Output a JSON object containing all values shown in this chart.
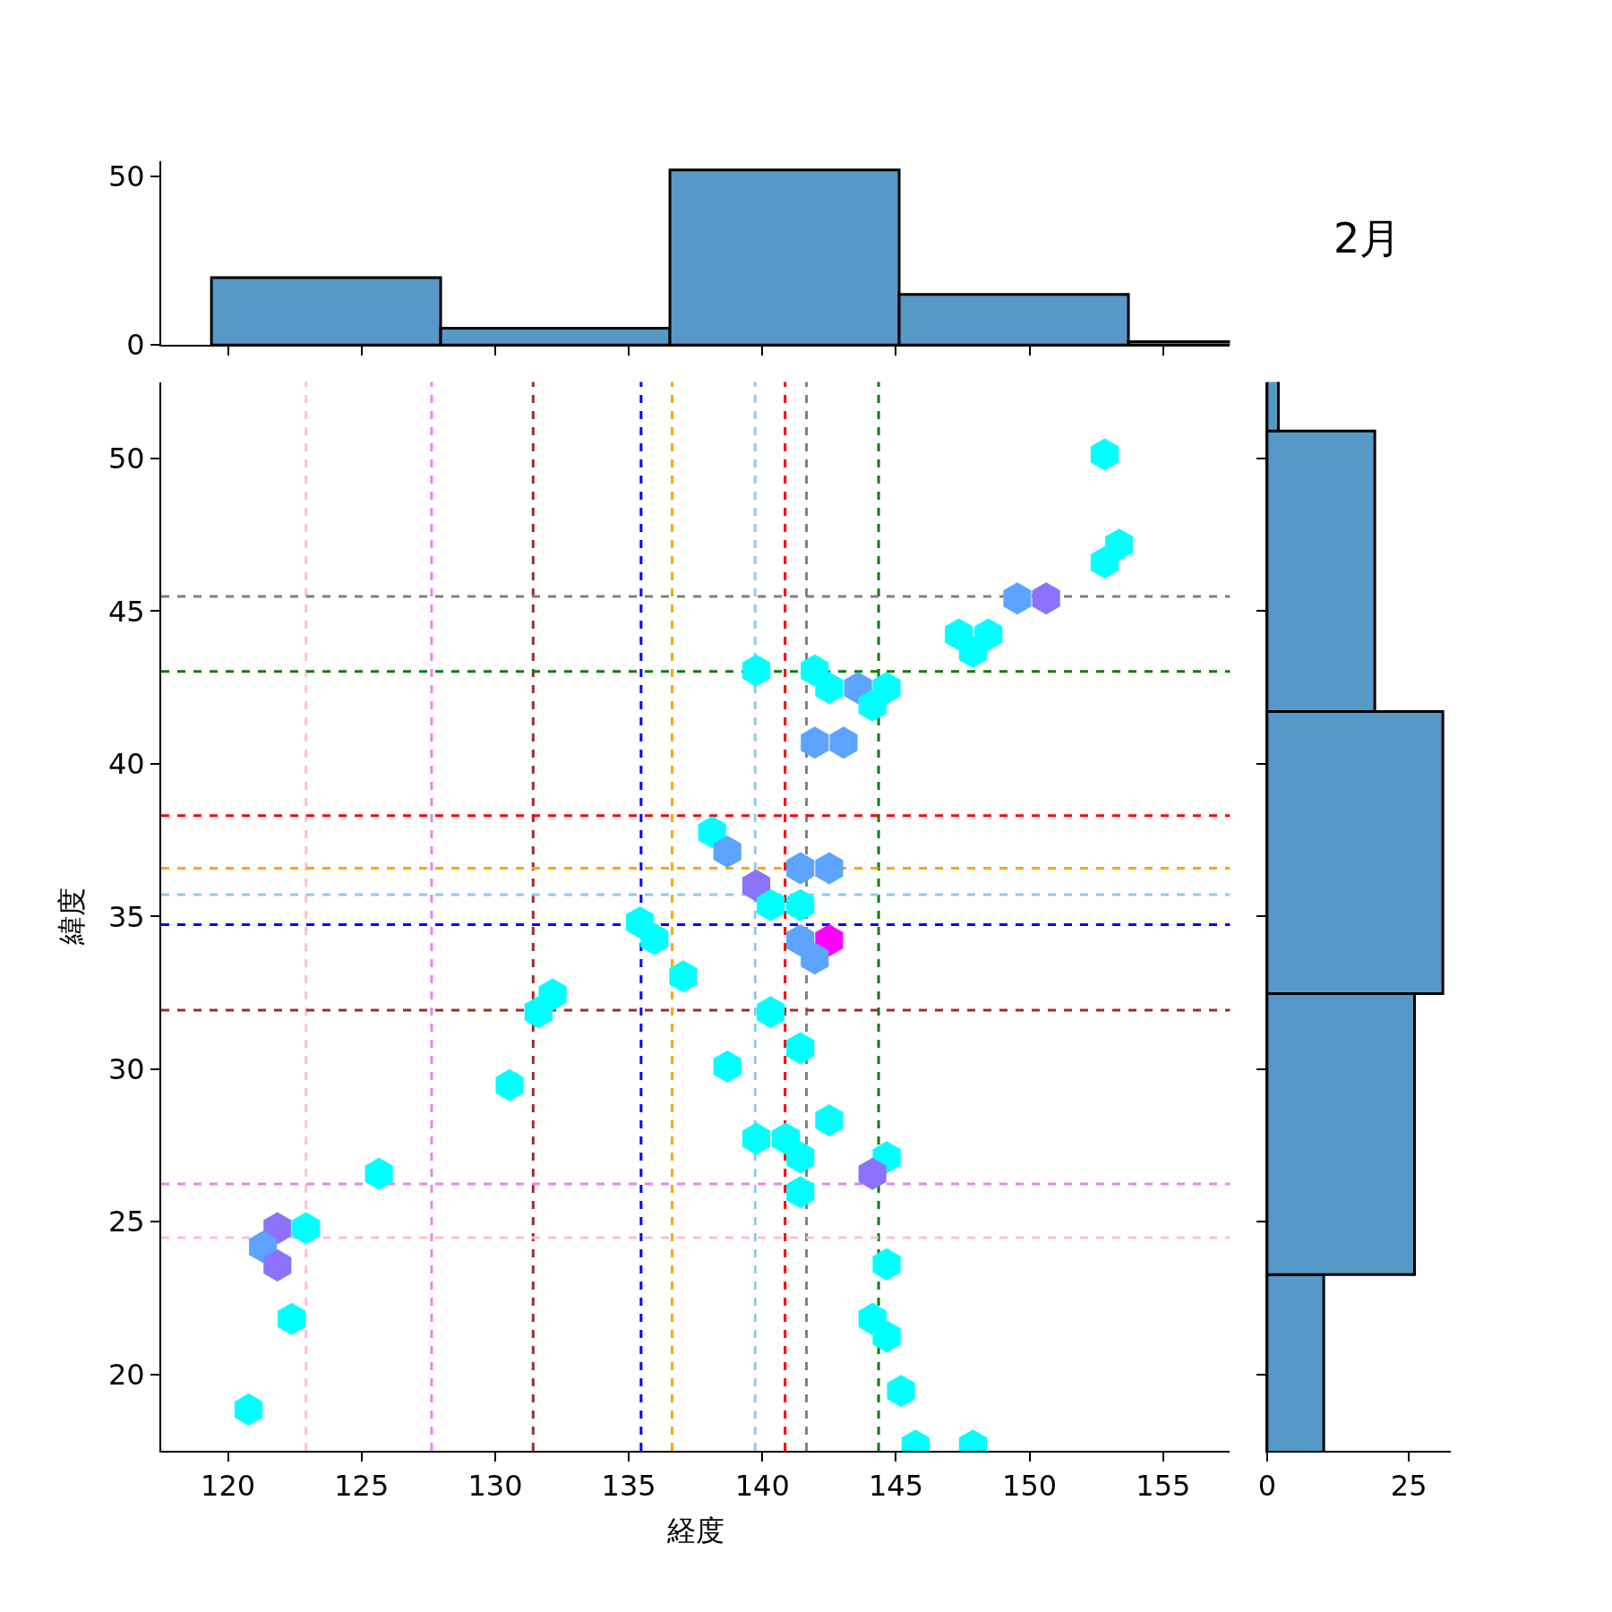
{
  "chart_data": [
    {
      "type": "histogram",
      "bins": [
        119.38,
        127.96,
        136.54,
        145.12,
        153.7,
        162.28
      ],
      "values": [
        20,
        5,
        52,
        15,
        1
      ],
      "color": "#5799c6",
      "xlim": [
        117.5,
        157.5
      ],
      "xticks": [
        120,
        125,
        130,
        135,
        140,
        145,
        150,
        155
      ],
      "ylim": [
        0,
        54.6
      ],
      "yticks": [
        0,
        50
      ],
      "tick_labels": "y"
    },
    {
      "type": "scatter",
      "xlabel": "経度",
      "ylabel": "緯度",
      "x": [
        152.81,
        153.35,
        152.81,
        149.54,
        150.62,
        147.35,
        148.46,
        147.88,
        139.77,
        141.96,
        142.5,
        143.58,
        144.65,
        144.12,
        141.96,
        143.04,
        138.12,
        138.69,
        141.42,
        142.5,
        139.77,
        140.31,
        141.42,
        135.42,
        135.96,
        141.42,
        142.5,
        141.96,
        137.04,
        132.15,
        131.62,
        140.31,
        141.42,
        138.69,
        130.54,
        142.5,
        139.77,
        140.88,
        141.42,
        144.65,
        144.12,
        125.65,
        141.42,
        121.85,
        122.92,
        121.31,
        121.85,
        144.65,
        122.38,
        144.12,
        144.65,
        145.19,
        120.77,
        145.73,
        147.88
      ],
      "values": [
        50.13,
        47.17,
        46.59,
        45.41,
        45.41,
        44.23,
        44.23,
        43.66,
        43.05,
        43.05,
        42.48,
        42.48,
        42.48,
        41.91,
        40.69,
        40.69,
        37.76,
        37.12,
        36.58,
        36.58,
        36.01,
        35.37,
        35.37,
        34.8,
        34.26,
        34.22,
        34.22,
        33.62,
        33.04,
        32.44,
        31.86,
        31.86,
        30.68,
        30.08,
        29.47,
        28.32,
        27.72,
        27.72,
        27.11,
        27.11,
        26.57,
        26.57,
        25.97,
        24.79,
        24.79,
        24.18,
        23.57,
        23.61,
        21.82,
        21.82,
        21.25,
        19.46,
        18.85,
        17.67,
        17.67
      ],
      "colors": [
        "#00ffff",
        "#00ffff",
        "#00ffff",
        "#5ca4ff",
        "#8c72fa",
        "#00ffff",
        "#00ffff",
        "#00ffff",
        "#00ffff",
        "#00ffff",
        "#00ffff",
        "#5ca4ff",
        "#00ffff",
        "#00ffff",
        "#5ca4ff",
        "#5ca4ff",
        "#00ffff",
        "#5ca4ff",
        "#5ca4ff",
        "#5ca4ff",
        "#8c72fa",
        "#00ffff",
        "#00ffff",
        "#00ffff",
        "#00ffff",
        "#5ca4ff",
        "#ff00ff",
        "#5ca4ff",
        "#00ffff",
        "#00ffff",
        "#00ffff",
        "#00ffff",
        "#00ffff",
        "#00ffff",
        "#00ffff",
        "#00ffff",
        "#00ffff",
        "#00ffff",
        "#00ffff",
        "#00ffff",
        "#8c72fa",
        "#00ffff",
        "#00ffff",
        "#8c72fa",
        "#00ffff",
        "#5ca4ff",
        "#8c72fa",
        "#00ffff",
        "#00ffff",
        "#00ffff",
        "#00ffff",
        "#00ffff",
        "#00ffff",
        "#00ffff",
        "#00ffff"
      ],
      "xlim": [
        117.5,
        157.5
      ],
      "xticks": [
        120,
        125,
        130,
        135,
        140,
        145,
        150,
        155
      ],
      "ylim": [
        17.5,
        52.5
      ],
      "yticks": [
        20,
        25,
        30,
        35,
        40,
        45,
        50
      ],
      "line_style": "dashed",
      "ref_lines": [
        {
          "axis": "x",
          "value": 122.92,
          "color": "#ffc0cb"
        },
        {
          "axis": "x",
          "value": 127.62,
          "color": "#ee82ee"
        },
        {
          "axis": "x",
          "value": 131.42,
          "color": "#a52a2a"
        },
        {
          "axis": "x",
          "value": 135.46,
          "color": "#0000ff"
        },
        {
          "axis": "x",
          "value": 136.62,
          "color": "#ffa500"
        },
        {
          "axis": "x",
          "value": 139.73,
          "color": "#87ceeb"
        },
        {
          "axis": "x",
          "value": 140.85,
          "color": "#ff0000"
        },
        {
          "axis": "x",
          "value": 141.65,
          "color": "#808080"
        },
        {
          "axis": "x",
          "value": 144.35,
          "color": "#008000"
        },
        {
          "axis": "y",
          "value": 45.48,
          "color": "#808080"
        },
        {
          "axis": "y",
          "value": 43.02,
          "color": "#008000"
        },
        {
          "axis": "y",
          "value": 38.3,
          "color": "#ff0000"
        },
        {
          "axis": "y",
          "value": 36.58,
          "color": "#ffa500"
        },
        {
          "axis": "y",
          "value": 35.71,
          "color": "#87ceeb"
        },
        {
          "axis": "y",
          "value": 34.73,
          "color": "#0000ff"
        },
        {
          "axis": "y",
          "value": 31.93,
          "color": "#a52a2a"
        },
        {
          "axis": "y",
          "value": 26.24,
          "color": "#ee82ee"
        },
        {
          "axis": "y",
          "value": 24.48,
          "color": "#ffc0cb"
        }
      ]
    },
    {
      "type": "histogram",
      "title": "2月",
      "orientation": "horizontal",
      "bins": [
        14.07,
        23.27,
        32.47,
        41.71,
        50.9,
        60.1
      ],
      "values": [
        10,
        26,
        31,
        19,
        2
      ],
      "color": "#5799c6",
      "xlim": [
        0,
        32.4
      ],
      "xticks": [
        0,
        25
      ],
      "ylim": [
        17.5,
        52.5
      ],
      "yticks": [
        20,
        25,
        30,
        35,
        40,
        45,
        50
      ],
      "tick_labels": "x"
    }
  ]
}
